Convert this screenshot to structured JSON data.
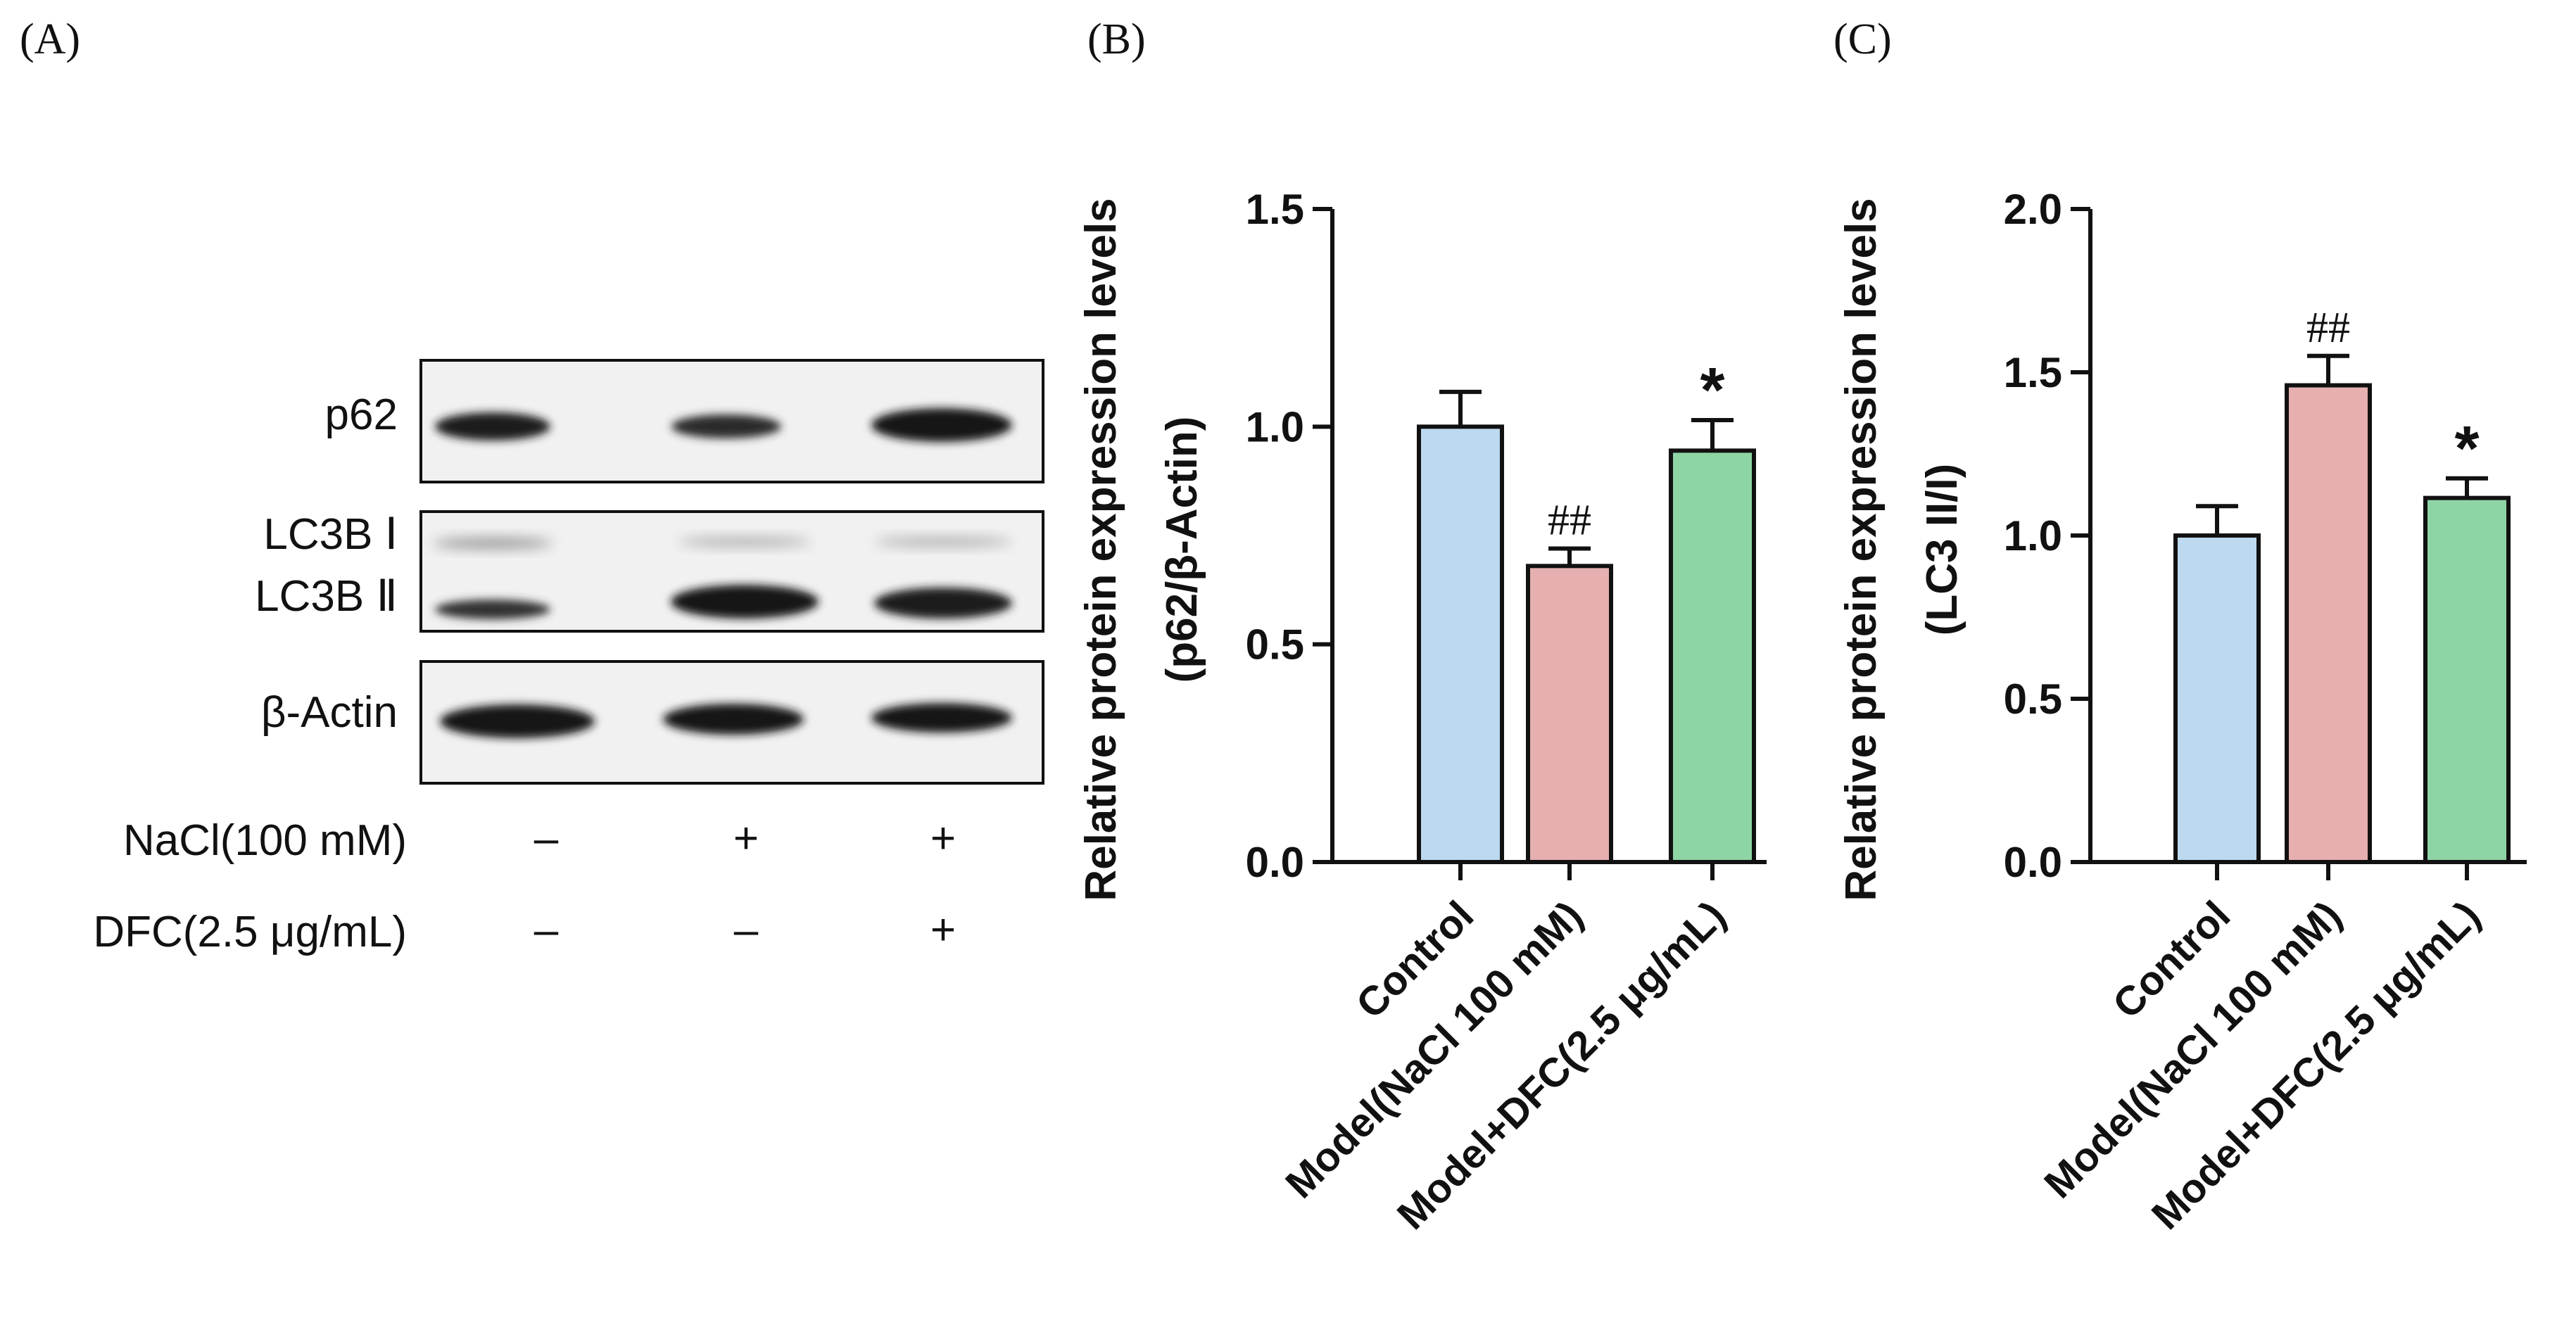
{
  "panels": {
    "a": {
      "label": "(A)"
    },
    "b": {
      "label": "(B)"
    },
    "c": {
      "label": "(C)"
    }
  },
  "blot": {
    "bands": [
      {
        "name": "p62",
        "label": "p62"
      },
      {
        "name": "lc3b-1",
        "label": "LC3B Ⅰ"
      },
      {
        "name": "lc3b-2",
        "label": "LC3B Ⅱ"
      },
      {
        "name": "beta-actin",
        "label": "β-Actin"
      }
    ],
    "treatments": [
      {
        "label": "NaCl(100 mM)",
        "marks": [
          "–",
          "+",
          "+"
        ]
      },
      {
        "label": "DFC(2.5 μg/mL)",
        "marks": [
          "–",
          "–",
          "+"
        ]
      }
    ]
  },
  "chart_data": [
    {
      "type": "bar",
      "panel": "B",
      "categories": [
        "Control",
        "Model(NaCl 100 mM)",
        "Model+DFC(2.5 μg/mL)"
      ],
      "values": [
        1.0,
        0.68,
        0.945
      ],
      "errors": [
        0.08,
        0.04,
        0.07
      ],
      "annotations": [
        "",
        "##",
        "*"
      ],
      "ylabel": "Relative protein expression levels",
      "ylabel2": "(p62/β-Actin)",
      "ylim": [
        0,
        1.5
      ],
      "yticks": [
        "0.0",
        "0.5",
        "1.0",
        "1.5"
      ],
      "colors": [
        "#bdd9ef",
        "#e6b0b0",
        "#8ed5a5"
      ]
    },
    {
      "type": "bar",
      "panel": "C",
      "categories": [
        "Control",
        "Model(NaCl 100 mM)",
        "Model+DFC(2.5 μg/mL)"
      ],
      "values": [
        1.0,
        1.46,
        1.115
      ],
      "errors": [
        0.09,
        0.09,
        0.06
      ],
      "annotations": [
        "",
        "##",
        "*"
      ],
      "ylabel": "Relative protein expression levels",
      "ylabel2": "(LC3 II/I)",
      "ylim": [
        0,
        2.0
      ],
      "yticks": [
        "0.0",
        "0.5",
        "1.0",
        "1.5",
        "2.0"
      ],
      "colors": [
        "#bdd9ef",
        "#e6b0b0",
        "#8ed5a5"
      ]
    }
  ]
}
